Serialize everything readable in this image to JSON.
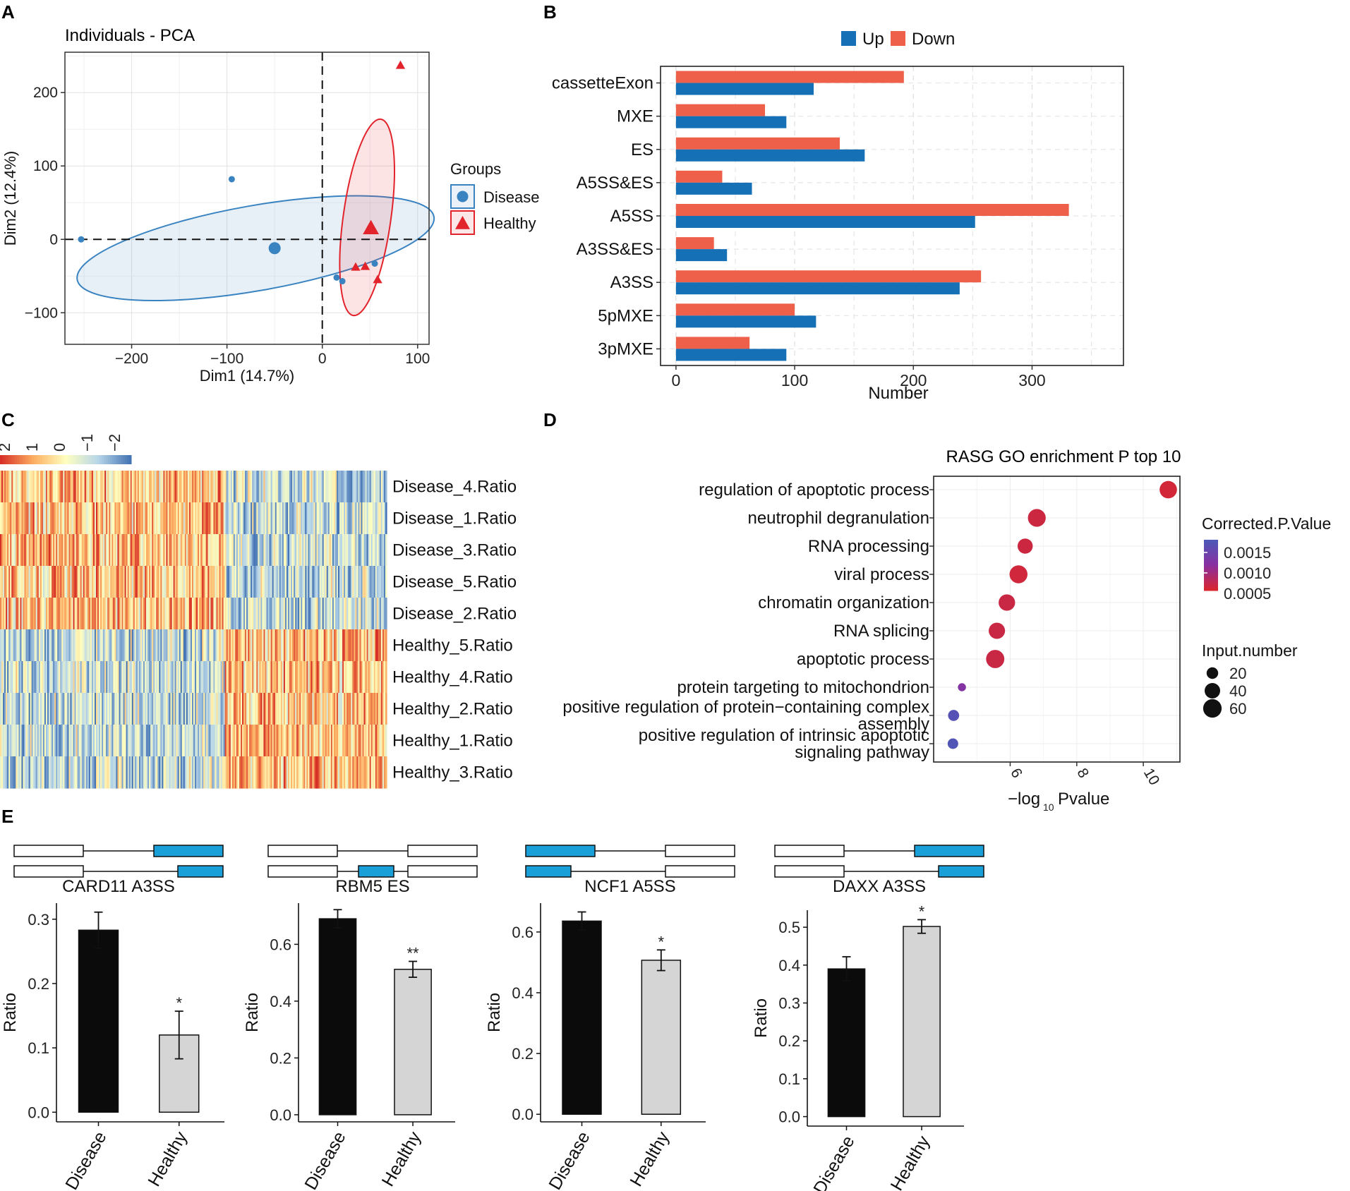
{
  "colors": {
    "disease": "#3a83c1",
    "healthy": "#e3232c",
    "up": "#1570b6",
    "down": "#ee604a",
    "bar_disease": "#0b0b0b",
    "bar_healthy": "#d5d5d5",
    "exon_fill": "#1aa0d8",
    "go_red": "#e3232c"
  },
  "panels": {
    "a": "A",
    "b": "B",
    "c": "C",
    "d": "D",
    "e": "E"
  },
  "chart_data": [
    {
      "id": "pca",
      "type": "scatter",
      "title": "Individuals - PCA",
      "xlabel": "Dim1 (14.7%)",
      "ylabel": "Dim2 (12.4%)",
      "xlim": [
        -270,
        112
      ],
      "ylim": [
        -143,
        255
      ],
      "xticks": [
        -200,
        -100,
        0,
        100
      ],
      "yticks": [
        -100,
        0,
        100,
        200
      ],
      "legend_title": "Groups",
      "series": [
        {
          "name": "Disease",
          "shape": "circle",
          "points": [
            [
              -253,
              0
            ],
            [
              -95,
              82
            ],
            [
              15,
              -52
            ],
            [
              21,
              -57
            ],
            [
              55,
              -33
            ]
          ],
          "centroid": [
            -50,
            -12
          ],
          "ellipse": {
            "cx": -70,
            "cy": -12,
            "rx": 190,
            "ry": 58,
            "angle": -10
          }
        },
        {
          "name": "Healthy",
          "shape": "triangle",
          "points": [
            [
              35,
              -38
            ],
            [
              45,
              -37
            ],
            [
              58,
              -55
            ],
            [
              82,
              237
            ]
          ],
          "centroid": [
            51,
            15
          ],
          "ellipse": {
            "cx": 47,
            "cy": 30,
            "rx": 25,
            "ry": 135,
            "angle": 8
          }
        }
      ]
    },
    {
      "id": "as_events",
      "type": "bar",
      "orientation": "horizontal",
      "legend": [
        "Up",
        "Down"
      ],
      "xlabel": "Number",
      "xlim": [
        -13,
        377
      ],
      "xticks": [
        0,
        100,
        200,
        300
      ],
      "categories": [
        "cassetteExon",
        "MXE",
        "ES",
        "A5SS&ES",
        "A5SS",
        "A3SS&ES",
        "A3SS",
        "5pMXE",
        "3pMXE"
      ],
      "series": [
        {
          "name": "Up",
          "values": [
            116,
            93,
            159,
            64,
            252,
            43,
            239,
            118,
            93
          ]
        },
        {
          "name": "Down",
          "values": [
            192,
            75,
            138,
            39,
            331,
            32,
            257,
            100,
            62
          ]
        }
      ]
    },
    {
      "id": "heatmap",
      "type": "heatmap",
      "scale_ticks": [
        "2",
        "1",
        "0",
        "−1",
        "−2"
      ],
      "rows": [
        "Disease_4.Ratio",
        "Disease_1.Ratio",
        "Disease_3.Ratio",
        "Disease_5.Ratio",
        "Disease_2.Ratio",
        "Healthy_5.Ratio",
        "Healthy_4.Ratio",
        "Healthy_2.Ratio",
        "Healthy_1.Ratio",
        "Healthy_3.Ratio"
      ],
      "columns": 270,
      "split_fraction": 0.58
    },
    {
      "id": "go",
      "type": "scatter",
      "title": "RASG GO enrichment P top 10",
      "xlabel": "−log",
      "xlabel_sub": "10",
      "xlabel_tail": "Pvalue",
      "xlim": [
        3.7,
        11.1
      ],
      "xticks": [
        6,
        8,
        10
      ],
      "color_title": "Corrected.P.Value",
      "color_ticks": [
        "0.0015",
        "0.0010",
        "0.0005"
      ],
      "size_title": "Input.number",
      "size_ticks": [
        "20",
        "40",
        "60"
      ],
      "terms": [
        {
          "lines": [
            "regulation of apoptotic process"
          ],
          "x": 10.75,
          "size": 52,
          "color": 0.05,
          "highlight": true
        },
        {
          "lines": [
            "neutrophil degranulation"
          ],
          "x": 6.8,
          "size": 55,
          "color": 0.08,
          "highlight": false
        },
        {
          "lines": [
            "RNA processing"
          ],
          "x": 6.45,
          "size": 38,
          "color": 0.08,
          "highlight": false
        },
        {
          "lines": [
            "viral process"
          ],
          "x": 6.25,
          "size": 56,
          "color": 0.06,
          "highlight": false
        },
        {
          "lines": [
            "chromatin organization"
          ],
          "x": 5.9,
          "size": 46,
          "color": 0.1,
          "highlight": false
        },
        {
          "lines": [
            "RNA splicing"
          ],
          "x": 5.6,
          "size": 45,
          "color": 0.1,
          "highlight": false
        },
        {
          "lines": [
            "apoptotic process"
          ],
          "x": 5.55,
          "size": 58,
          "color": 0.1,
          "highlight": true
        },
        {
          "lines": [
            "protein targeting to mitochondrion"
          ],
          "x": 4.55,
          "size": 8,
          "color": 0.55,
          "highlight": false
        },
        {
          "lines": [
            "positive regulation of protein−containing complex",
            "assembly"
          ],
          "x": 4.3,
          "size": 18,
          "color": 0.92,
          "highlight": false
        },
        {
          "lines": [
            "positive regulation of intrinsic apoptotic",
            "signaling pathway"
          ],
          "x": 4.28,
          "size": 16,
          "color": 0.96,
          "highlight": true
        }
      ]
    },
    {
      "id": "card11",
      "type": "bar",
      "title": "CARD11 A3SS",
      "categories": [
        "Disease",
        "Healthy"
      ],
      "values": [
        0.283,
        0.12
      ],
      "errors": [
        0.028,
        0.037
      ],
      "sig": [
        "",
        "*"
      ],
      "ylabel": "Ratio",
      "ylim": [
        -0.015,
        0.325
      ],
      "yticks": [
        0.0,
        0.1,
        0.2,
        0.3
      ],
      "ytick_labels": [
        "0.0",
        "0.1",
        "0.2",
        "0.3"
      ],
      "event": "A3SS"
    },
    {
      "id": "rbm5",
      "type": "bar",
      "title": "RBM5 ES",
      "categories": [
        "Disease",
        "Healthy"
      ],
      "values": [
        0.69,
        0.512
      ],
      "errors": [
        0.032,
        0.028
      ],
      "sig": [
        "",
        "**"
      ],
      "ylabel": "Ratio",
      "ylim": [
        -0.025,
        0.745
      ],
      "yticks": [
        0.0,
        0.2,
        0.4,
        0.6
      ],
      "ytick_labels": [
        "0.0",
        "0.2",
        "0.4",
        "0.6"
      ],
      "event": "ES"
    },
    {
      "id": "ncf1",
      "type": "bar",
      "title": "NCF1 A5SS",
      "categories": [
        "Disease",
        "Healthy"
      ],
      "values": [
        0.636,
        0.507
      ],
      "errors": [
        0.03,
        0.034
      ],
      "sig": [
        "",
        "*"
      ],
      "ylabel": "Ratio",
      "ylim": [
        -0.025,
        0.695
      ],
      "yticks": [
        0.0,
        0.2,
        0.4,
        0.6
      ],
      "ytick_labels": [
        "0.0",
        "0.2",
        "0.4",
        "0.6"
      ],
      "event": "A5SS"
    },
    {
      "id": "daxx",
      "type": "bar",
      "title": "DAXX A3SS",
      "categories": [
        "Disease",
        "Healthy"
      ],
      "values": [
        0.39,
        0.502
      ],
      "errors": [
        0.032,
        0.018
      ],
      "sig": [
        "",
        "*"
      ],
      "ylabel": "Ratio",
      "ylim": [
        -0.025,
        0.545
      ],
      "yticks": [
        0.0,
        0.1,
        0.2,
        0.3,
        0.4,
        0.5
      ],
      "ytick_labels": [
        "0.0",
        "0.1",
        "0.2",
        "0.3",
        "0.4",
        "0.5"
      ],
      "event": "A3SS"
    }
  ]
}
